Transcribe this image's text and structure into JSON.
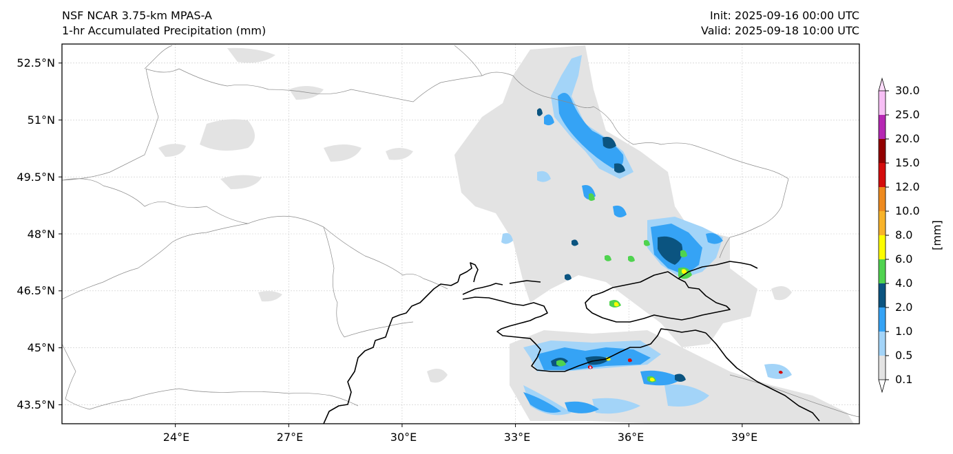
{
  "header": {
    "model_line": "NSF NCAR 3.75-km MPAS-A",
    "field_line": "1-hr Accumulated Precipitation (mm)",
    "init_line": "Init: 2025-09-16 00:00 UTC",
    "valid_line": "Valid: 2025-09-18 10:00 UTC"
  },
  "map": {
    "lon_labels": [
      "24°E",
      "27°E",
      "30°E",
      "33°E",
      "36°E",
      "39°E"
    ],
    "lon_values": [
      24,
      27,
      30,
      33,
      36,
      39
    ],
    "lat_labels": [
      "52.5°N",
      "51°N",
      "49.5°N",
      "48°N",
      "46.5°N",
      "45°N",
      "43.5°N"
    ],
    "lat_values": [
      52.5,
      51,
      49.5,
      48,
      46.5,
      45,
      43.5
    ],
    "lon_range": [
      21,
      42.1
    ],
    "lat_range": [
      43,
      53
    ]
  },
  "colorbar": {
    "unit_label": "[mm]",
    "levels": [
      "0.1",
      "0.5",
      "1.0",
      "2.0",
      "4.0",
      "6.0",
      "8.0",
      "10.0",
      "12.0",
      "15.0",
      "20.0",
      "25.0",
      "30.0"
    ],
    "colors": [
      "#e3e3e3",
      "#a3d4f8",
      "#35a3f5",
      "#0b5480",
      "#4fd34f",
      "#fdfd00",
      "#f8b32a",
      "#ee8a1f",
      "#d40c0c",
      "#930000",
      "#b628b3",
      "#f7bff5"
    ],
    "under_color": "#ffffff",
    "over_color": "#fcdcfa"
  },
  "colors": {
    "coastline": "#000000",
    "border": "#8a8a8a",
    "grid": "#c8c8c8"
  }
}
